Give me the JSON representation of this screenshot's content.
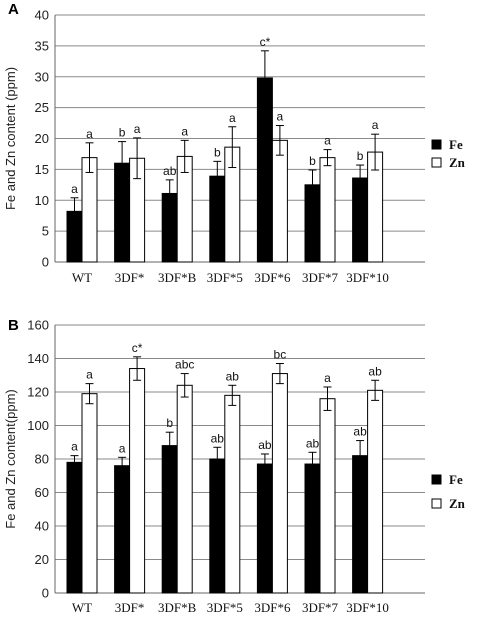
{
  "chart_data": [
    {
      "panel_label": "A",
      "type": "bar",
      "categories": [
        "WT",
        "3DF*",
        "3DF*B",
        "3DF*5",
        "3DF*6",
        "3DF*7",
        "3DF*10"
      ],
      "series": [
        {
          "name": "Fe",
          "color": "#000000",
          "values": [
            8.2,
            16.0,
            11.1,
            13.9,
            29.8,
            12.5,
            13.6
          ],
          "errors": [
            2.2,
            3.5,
            2.2,
            2.4,
            4.4,
            2.4,
            2.1
          ],
          "labels": [
            "a",
            "b",
            "ab",
            "b",
            "c*",
            "b",
            "b"
          ]
        },
        {
          "name": "Zn",
          "color": "#ffffff",
          "values": [
            16.9,
            16.8,
            17.1,
            18.6,
            19.7,
            16.9,
            17.8
          ],
          "errors": [
            2.4,
            3.3,
            2.6,
            3.3,
            2.4,
            1.3,
            2.9
          ],
          "labels": [
            "a",
            "a",
            "a",
            "a",
            "a",
            "a",
            "a"
          ]
        }
      ],
      "ylabel": "Fe and Zn content (ppm)",
      "ylim": [
        0,
        40
      ],
      "yticks": [
        0,
        5,
        10,
        15,
        20,
        25,
        30,
        35,
        40
      ],
      "grid": true,
      "legend": "right"
    },
    {
      "panel_label": "B",
      "type": "bar",
      "categories": [
        "WT",
        "3DF*",
        "3DF*B",
        "3DF*5",
        "3DF*6",
        "3DF*7",
        "3DF*10"
      ],
      "series": [
        {
          "name": "Fe",
          "color": "#000000",
          "values": [
            78,
            76,
            88,
            80,
            77,
            77,
            82
          ],
          "errors": [
            4,
            5,
            8,
            7,
            6,
            7,
            9
          ],
          "labels": [
            "a",
            "a",
            "b",
            "ab",
            "ab",
            "ab",
            "ab"
          ]
        },
        {
          "name": "Zn",
          "color": "#ffffff",
          "values": [
            119,
            134,
            124,
            118,
            131,
            116,
            121
          ],
          "errors": [
            6,
            7,
            7,
            6,
            6,
            7,
            6
          ],
          "labels": [
            "a",
            "c*",
            "abc",
            "ab",
            "bc",
            "a",
            "ab"
          ]
        }
      ],
      "ylabel": "Fe and Zn content(ppm)",
      "ylim": [
        0,
        160
      ],
      "yticks": [
        0,
        20,
        40,
        60,
        80,
        100,
        120,
        140,
        160
      ],
      "grid": true,
      "legend": "right"
    }
  ]
}
